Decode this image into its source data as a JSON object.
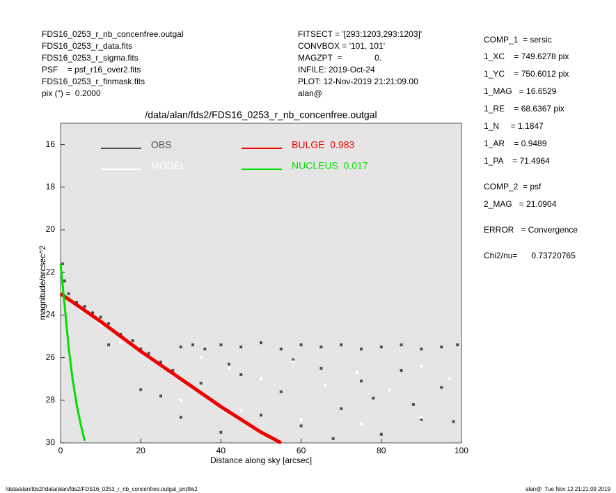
{
  "header": {
    "left": [
      "FDS16_0253_r_nb_concenfree.outgal",
      "FDS16_0253_r_data.fits",
      "FDS16_0253_r_sigma.fits",
      "PSF    = psf_r16_over2.fits",
      "FDS16_0253_r_finmask.fits",
      "pix (\") =  0.2000"
    ],
    "middle": [
      "FITSECT = '[293:1203,293:1203]'",
      "CONVBOX = '101, 101'",
      "MAGZPT  =              0.",
      "INFILE: 2019-Oct-24",
      "PLOT: 12-Nov-2019 21:21:09.00",
      "alan@"
    ]
  },
  "params": [
    "COMP_1  = sersic",
    "1_XC    = 749.6278 pix",
    "1_YC    = 750.6012 pix",
    "1_MAG   = 16.6529",
    "1_RE    = 68.6367 pix",
    "1_N     = 1.1847",
    "1_AR    = 0.9489",
    "1_PA    = 71.4964",
    "COMP_2  = psf",
    "2_MAG   = 21.0904",
    "ERROR   = Convergence",
    "Chi2/nu=      0.73720765"
  ],
  "footer": {
    "left": "/data/alan/fds2//data/alan/fds2/FDS16_0253_r_nb_concenfree.outgal_profile2",
    "right": "alan@  Tue Nov 12 21:21:09 2019"
  },
  "chart_data": {
    "type": "scatter",
    "title": "/data/alan/fds2/FDS16_0253_r_nb_concenfree.outgal",
    "x_label": "Distance along sky [arcsec]",
    "y_label": "magnitude/arcsec^2",
    "xlim": [
      0,
      100
    ],
    "ylim": [
      15,
      30
    ],
    "y_inverted": true,
    "xticks": [
      0,
      20,
      40,
      60,
      80,
      100
    ],
    "yticks": [
      16,
      18,
      20,
      22,
      24,
      26,
      28,
      30
    ],
    "series": [
      {
        "name": "OBS",
        "type": "scatter",
        "color": "#505050",
        "x": [
          0.5,
          1,
          2,
          4,
          6,
          8,
          10,
          12,
          15,
          18,
          20,
          22,
          25,
          28,
          30,
          33,
          36,
          40,
          45,
          50,
          55,
          60,
          65,
          70,
          75,
          80,
          85,
          90,
          95,
          99,
          20,
          30,
          40,
          50,
          60,
          70,
          80,
          90,
          35,
          45,
          55,
          65,
          75,
          85,
          95,
          12,
          25,
          42,
          58,
          68,
          78,
          88,
          98
        ],
        "values": [
          21.6,
          22.4,
          23.0,
          23.4,
          23.6,
          23.9,
          24.1,
          24.4,
          24.9,
          25.2,
          25.6,
          25.8,
          26.2,
          26.6,
          25.5,
          25.4,
          25.6,
          25.4,
          25.5,
          25.3,
          25.6,
          25.4,
          25.5,
          25.4,
          25.6,
          25.5,
          25.4,
          25.6,
          25.5,
          25.4,
          27.5,
          28.8,
          29.5,
          28.7,
          29.2,
          28.4,
          29.6,
          28.9,
          27.2,
          26.8,
          27.6,
          26.5,
          27.1,
          26.6,
          27.4,
          25.4,
          27.8,
          26.3,
          26.1,
          29.8,
          27.9,
          28.2,
          29.0
        ]
      },
      {
        "name": "MODEL",
        "type": "scatter",
        "color": "#ffffff",
        "x": [
          5,
          10,
          15,
          22,
          28,
          35,
          42,
          50,
          58,
          66,
          74,
          82,
          90,
          97,
          30,
          45,
          60,
          75,
          90
        ],
        "values": [
          23.8,
          24.5,
          25.3,
          26.0,
          26.8,
          26.0,
          26.5,
          27.0,
          26.2,
          27.3,
          26.7,
          27.5,
          26.4,
          27.0,
          28.0,
          28.5,
          28.9,
          29.1,
          28.8
        ]
      },
      {
        "name": "BULGE  0.983",
        "type": "line",
        "color": "#ee0000",
        "x": [
          0,
          10,
          20,
          30,
          40,
          50,
          55
        ],
        "values": [
          23.0,
          24.3,
          25.7,
          27.0,
          28.3,
          29.5,
          30.0
        ]
      },
      {
        "name": "NUCLEUS  0.017",
        "type": "line",
        "color": "#00e000",
        "x": [
          0,
          1,
          2,
          3,
          4,
          5,
          6
        ],
        "values": [
          21.6,
          23.5,
          25.5,
          27.0,
          28.2,
          29.1,
          29.9
        ]
      }
    ]
  }
}
